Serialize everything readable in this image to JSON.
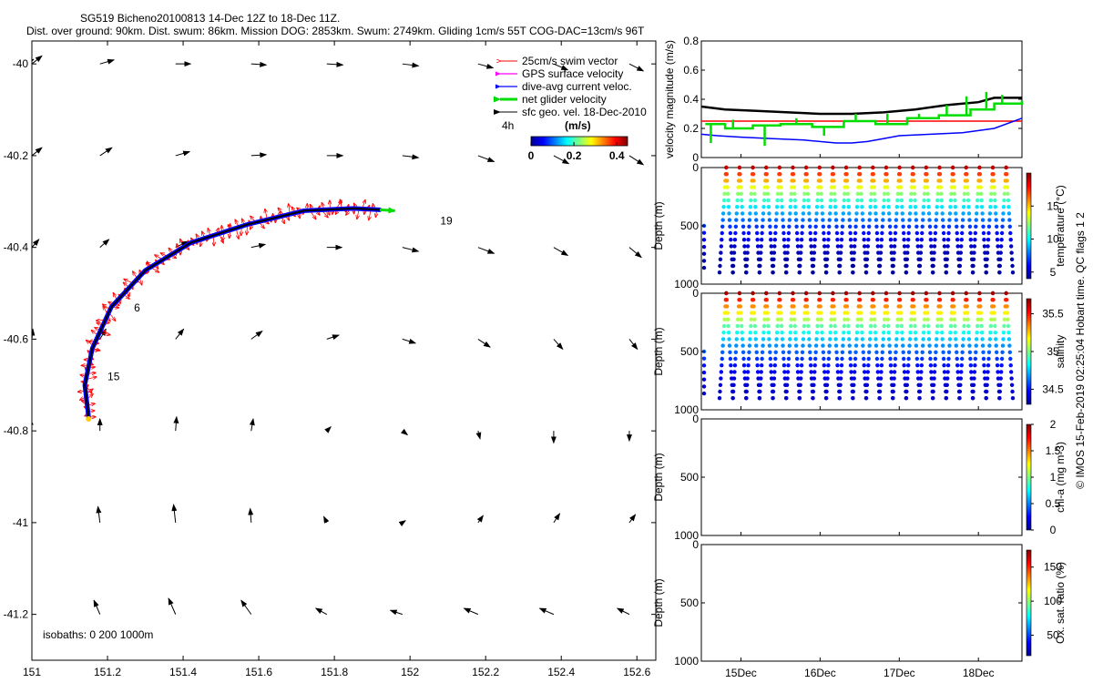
{
  "title": {
    "line1": "SG519 Bicheno20100813 14-Dec 12Z to 18-Dec 11Z.",
    "line2": "Dist. over ground: 90km. Dist. swum: 86km. Mission DOG: 2853km. Swum: 2749km. Gliding 1cm/s 55T COG-DAC=13cm/s 96T"
  },
  "side_credit": "© IMOS 15-Feb-2019 02:25:04 Hobart time. QC flags 1  2",
  "chart_data": [
    {
      "id": "track_map",
      "type": "scatter",
      "xlim": [
        151.0,
        152.65
      ],
      "ylim": [
        -41.3,
        -39.95
      ],
      "xticks": [
        "151",
        "151.2",
        "151.4",
        "151.6",
        "151.8",
        "152",
        "152.2",
        "152.4",
        "152.6"
      ],
      "xtick_values": [
        151.0,
        151.2,
        151.4,
        151.6,
        151.8,
        152.0,
        152.2,
        152.4,
        152.6
      ],
      "yticks": [
        "-40",
        "-40.2",
        "-40.4",
        "-40.6",
        "-40.8",
        "-41",
        "-41.2"
      ],
      "ytick_values": [
        -40.0,
        -40.2,
        -40.4,
        -40.6,
        -40.8,
        -41.0,
        -41.2
      ],
      "legend": {
        "placement": "top-right",
        "entries": [
          {
            "label": "25cm/s swim vector",
            "color": "#ff0000"
          },
          {
            "label": "GPS surface velocity",
            "color": "#ff00ff"
          },
          {
            "label": "dive-avg current veloc.",
            "color": "#0000ff"
          },
          {
            "label": "net glider velocity",
            "color": "#00dd00"
          },
          {
            "label": "sfc geo. vel. 18-Dec-2010",
            "color": "#000000"
          }
        ],
        "scale_label": "4h",
        "colorbar_title": "(m/s)",
        "colorbar_ticks": [
          "0",
          "0.2",
          "0.4"
        ],
        "colorbar_range": [
          0,
          0.45
        ]
      },
      "isobaths_label": "isobaths: 0   200   1000m",
      "day_labels": [
        {
          "text": "19",
          "lon": 152.08,
          "lat": -40.35
        },
        {
          "text": "6",
          "lon": 151.27,
          "lat": -40.54
        },
        {
          "text": "15",
          "lon": 151.2,
          "lat": -40.69
        }
      ],
      "track": [
        [
          151.15,
          -40.77
        ],
        [
          151.14,
          -40.7
        ],
        [
          151.16,
          -40.62
        ],
        [
          151.21,
          -40.53
        ],
        [
          151.3,
          -40.45
        ],
        [
          151.42,
          -40.39
        ],
        [
          151.57,
          -40.35
        ],
        [
          151.72,
          -40.32
        ],
        [
          151.85,
          -40.315
        ],
        [
          151.92,
          -40.318
        ]
      ],
      "net_velocity_end": [
        151.96,
        -40.32
      ],
      "geo_grid": {
        "lons": [
          151.0,
          151.18,
          151.38,
          151.58,
          151.78,
          151.98,
          152.18,
          152.38,
          152.58
        ],
        "lats": [
          -40.0,
          -40.2,
          -40.4,
          -40.6,
          -40.8,
          -41.0,
          -41.2
        ],
        "u": [
          [
            0.5,
            0.7,
            0.75,
            0.75,
            0.8,
            0.8,
            0.75,
            0.7,
            0.7
          ],
          [
            0.5,
            0.6,
            0.7,
            0.75,
            0.8,
            0.8,
            0.8,
            0.75,
            0.7
          ],
          [
            0.35,
            0.45,
            0.6,
            0.7,
            0.75,
            0.8,
            0.8,
            0.7,
            0.6
          ],
          [
            0.05,
            0.3,
            0.4,
            0.55,
            0.6,
            0.65,
            0.6,
            0.45,
            0.4
          ],
          [
            -0.1,
            0.0,
            0.05,
            0.1,
            0.2,
            0.25,
            0.1,
            0.0,
            0.0
          ],
          [
            -0.2,
            -0.1,
            -0.1,
            -0.05,
            -0.15,
            0.15,
            0.25,
            0.3,
            0.3
          ],
          [
            -0.2,
            -0.3,
            -0.35,
            -0.5,
            -0.55,
            -0.6,
            -0.7,
            -0.7,
            -0.6
          ]
        ],
        "v": [
          [
            0.4,
            0.2,
            0.0,
            -0.05,
            -0.05,
            -0.1,
            -0.2,
            -0.3,
            -0.35
          ],
          [
            0.4,
            0.4,
            0.2,
            0.05,
            0.0,
            -0.1,
            -0.3,
            -0.4,
            -0.45
          ],
          [
            0.4,
            0.4,
            0.3,
            0.15,
            0.0,
            -0.2,
            -0.3,
            -0.4,
            -0.5
          ],
          [
            0.5,
            0.5,
            0.5,
            0.4,
            0.2,
            -0.2,
            -0.4,
            -0.5,
            -0.5
          ],
          [
            0.6,
            0.6,
            0.7,
            0.6,
            0.2,
            -0.2,
            -0.4,
            -0.6,
            -0.5
          ],
          [
            0.6,
            0.8,
            0.9,
            0.7,
            0.3,
            0.1,
            0.35,
            0.45,
            0.4
          ],
          [
            0.6,
            0.7,
            0.8,
            0.7,
            0.3,
            0.2,
            0.3,
            0.3,
            0.3
          ]
        ]
      }
    },
    {
      "id": "velocity_magnitude",
      "type": "line",
      "ylabel": "velocity magnitude (m/s)",
      "ylim": [
        0,
        0.8
      ],
      "yticks": [
        "0",
        "0.2",
        "0.4",
        "0.6",
        "0.8"
      ],
      "xlim": [
        14.5,
        18.55
      ],
      "series": [
        {
          "color": "#ff0000",
          "x": [
            14.5,
            18.55
          ],
          "y": [
            0.25,
            0.25
          ]
        },
        {
          "color": "#000000",
          "x": [
            14.5,
            14.8,
            15.2,
            15.6,
            16.0,
            16.4,
            16.8,
            17.2,
            17.6,
            18.0,
            18.2,
            18.55
          ],
          "y": [
            0.35,
            0.33,
            0.32,
            0.31,
            0.3,
            0.3,
            0.31,
            0.33,
            0.36,
            0.38,
            0.41,
            0.41
          ]
        },
        {
          "color": "#0000ff",
          "x": [
            14.5,
            14.7,
            15.0,
            15.4,
            15.8,
            16.2,
            16.4,
            16.6,
            16.8,
            17.0,
            17.4,
            17.8,
            18.2,
            18.55
          ],
          "y": [
            0.16,
            0.15,
            0.14,
            0.13,
            0.12,
            0.1,
            0.1,
            0.11,
            0.13,
            0.15,
            0.16,
            0.17,
            0.2,
            0.27
          ]
        },
        {
          "color": "#00dd00",
          "x": [
            14.55,
            14.8,
            15.15,
            15.5,
            15.9,
            16.3,
            16.7,
            17.1,
            17.5,
            17.9,
            18.2,
            18.55
          ],
          "y": [
            0.23,
            0.2,
            0.22,
            0.23,
            0.21,
            0.25,
            0.23,
            0.27,
            0.29,
            0.33,
            0.37,
            0.39
          ]
        }
      ],
      "green_spikes": [
        [
          14.62,
          0.1
        ],
        [
          14.9,
          0.26
        ],
        [
          15.3,
          0.08
        ],
        [
          15.7,
          0.27
        ],
        [
          16.05,
          0.15
        ],
        [
          16.45,
          0.3
        ],
        [
          16.85,
          0.3
        ],
        [
          17.25,
          0.3
        ],
        [
          17.6,
          0.36
        ],
        [
          17.85,
          0.42
        ],
        [
          18.1,
          0.45
        ],
        [
          18.3,
          0.43
        ]
      ]
    },
    {
      "id": "temperature_section",
      "type": "scatter",
      "ylabel": "Depth (m)",
      "ylim": [
        1000,
        0
      ],
      "yticks": [
        "0",
        "500",
        "1000"
      ],
      "colorbar_label": "temperature (°C)",
      "colorbar_ticks": [
        "5",
        "10",
        "15"
      ],
      "color_range": [
        4,
        20
      ],
      "surface_value": 19,
      "deep_value": 4.5,
      "dives": 22,
      "max_depth": 900
    },
    {
      "id": "salinity_section",
      "type": "scatter",
      "ylabel": "Depth (m)",
      "ylim": [
        1000,
        0
      ],
      "yticks": [
        "0",
        "500",
        "1000"
      ],
      "colorbar_label": "salinity",
      "colorbar_ticks": [
        "34.5",
        "35",
        "35.5"
      ],
      "color_range": [
        34.3,
        35.7
      ],
      "surface_value": 35.65,
      "deep_value": 34.4,
      "dives": 22,
      "max_depth": 900
    },
    {
      "id": "chla_section",
      "type": "scatter",
      "ylabel": "Depth (m)",
      "ylim": [
        1000,
        0
      ],
      "yticks": [
        "0",
        "500",
        "1000"
      ],
      "colorbar_label": "chl-a (mg m-3)",
      "colorbar_ticks": [
        "0",
        "0.5",
        "1",
        "1.5",
        "2"
      ],
      "color_range": [
        0,
        2
      ]
    },
    {
      "id": "oxygen_section",
      "type": "scatter",
      "ylabel": "Depth (m)",
      "ylim": [
        1000,
        0
      ],
      "yticks": [
        "0",
        "500",
        "1000"
      ],
      "xticks": [
        "15Dec",
        "16Dec",
        "17Dec",
        "18Dec"
      ],
      "xtick_values": [
        15,
        16,
        17,
        18
      ],
      "xlim": [
        14.5,
        18.55
      ],
      "colorbar_label": "Ox. sat. ratio (%)",
      "colorbar_ticks": [
        "50",
        "100",
        "150"
      ],
      "color_range": [
        20,
        175
      ]
    }
  ]
}
